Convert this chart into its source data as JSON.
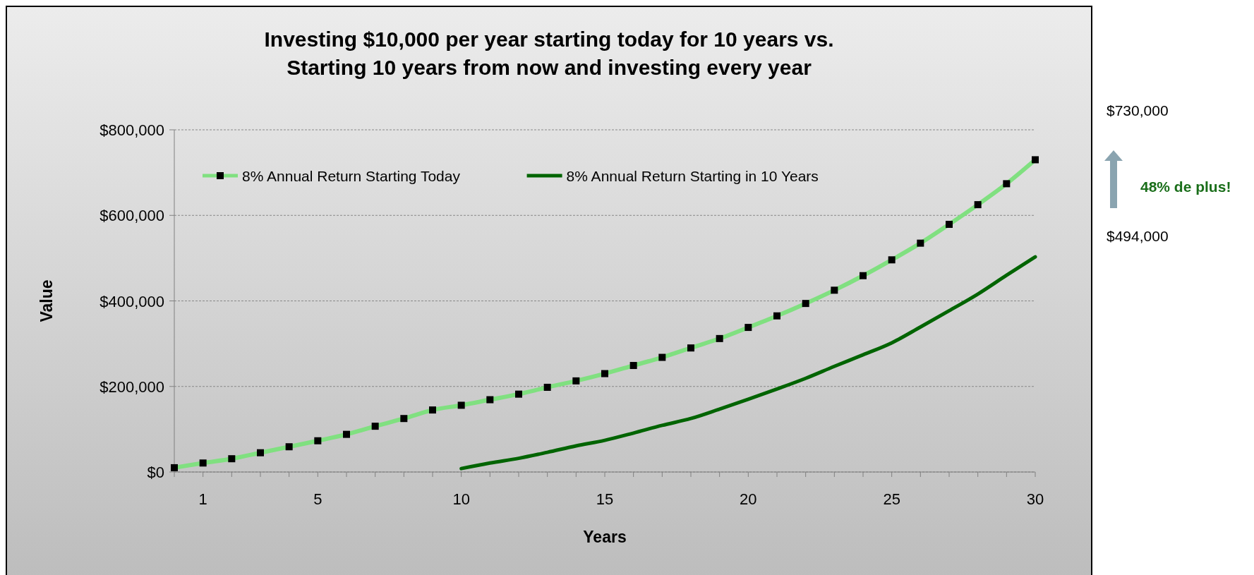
{
  "chart_data": {
    "type": "line",
    "title": "Investing $10,000 per year starting today for 10 years vs.\nStarting 10 years from now and investing every year",
    "xlabel": "Years",
    "ylabel": "Value",
    "x": [
      0,
      1,
      2,
      3,
      4,
      5,
      6,
      7,
      8,
      9,
      10,
      11,
      12,
      13,
      14,
      15,
      16,
      17,
      18,
      19,
      20,
      21,
      22,
      23,
      24,
      25,
      26,
      27,
      28,
      29,
      30
    ],
    "series": [
      {
        "name": "8% Annual Return Starting Today",
        "color": "#80e080",
        "marker": "square",
        "values": [
          10000,
          21000,
          31000,
          45000,
          59000,
          73000,
          88000,
          107000,
          125000,
          145000,
          156000,
          169000,
          182000,
          198000,
          213000,
          230000,
          249000,
          268000,
          290000,
          312000,
          338000,
          365000,
          394000,
          425000,
          459000,
          496000,
          535000,
          579000,
          625000,
          674000,
          730000
        ]
      },
      {
        "name": "8% Annual Return Starting in 10 Years",
        "color": "#006400",
        "marker": "none",
        "values": [
          null,
          null,
          null,
          null,
          null,
          null,
          null,
          null,
          null,
          null,
          8000,
          21000,
          32000,
          46000,
          61000,
          74000,
          91000,
          109000,
          125000,
          147000,
          170000,
          194000,
          219000,
          247000,
          274000,
          302000,
          339000,
          377000,
          416000,
          460000,
          503000
        ]
      }
    ],
    "xlim": [
      0,
      30
    ],
    "xticks": [
      {
        "value": 0,
        "label": null
      },
      1,
      {
        "value": 2,
        "label": null
      },
      {
        "value": 3,
        "label": null
      },
      {
        "value": 4,
        "label": null
      },
      5,
      {
        "value": 6,
        "label": null
      },
      {
        "value": 7,
        "label": null
      },
      {
        "value": 8,
        "label": null
      },
      {
        "value": 9,
        "label": null
      },
      10,
      {
        "value": 11,
        "label": null
      },
      {
        "value": 12,
        "label": null
      },
      {
        "value": 13,
        "label": null
      },
      {
        "value": 14,
        "label": null
      },
      15,
      {
        "value": 16,
        "label": null
      },
      {
        "value": 17,
        "label": null
      },
      {
        "value": 18,
        "label": null
      },
      {
        "value": 19,
        "label": null
      },
      20,
      {
        "value": 21,
        "label": null
      },
      {
        "value": 22,
        "label": null
      },
      {
        "value": 23,
        "label": null
      },
      {
        "value": 24,
        "label": null
      },
      25,
      {
        "value": 26,
        "label": null
      },
      {
        "value": 27,
        "label": null
      },
      {
        "value": 28,
        "label": null
      },
      {
        "value": 29,
        "label": null
      },
      30
    ],
    "ylim": [
      0,
      800000
    ],
    "yticks": [
      {
        "value": 0,
        "label": "$0"
      },
      {
        "value": 200000,
        "label": "$200,000"
      },
      {
        "value": 400000,
        "label": "$400,000"
      },
      {
        "value": 600000,
        "label": "$600,000"
      },
      {
        "value": 800000,
        "label": "$800,000"
      }
    ],
    "grid": "y",
    "legend": "top left",
    "annotations": [
      "$730,000",
      "48% de plus!",
      "$494,000"
    ]
  }
}
